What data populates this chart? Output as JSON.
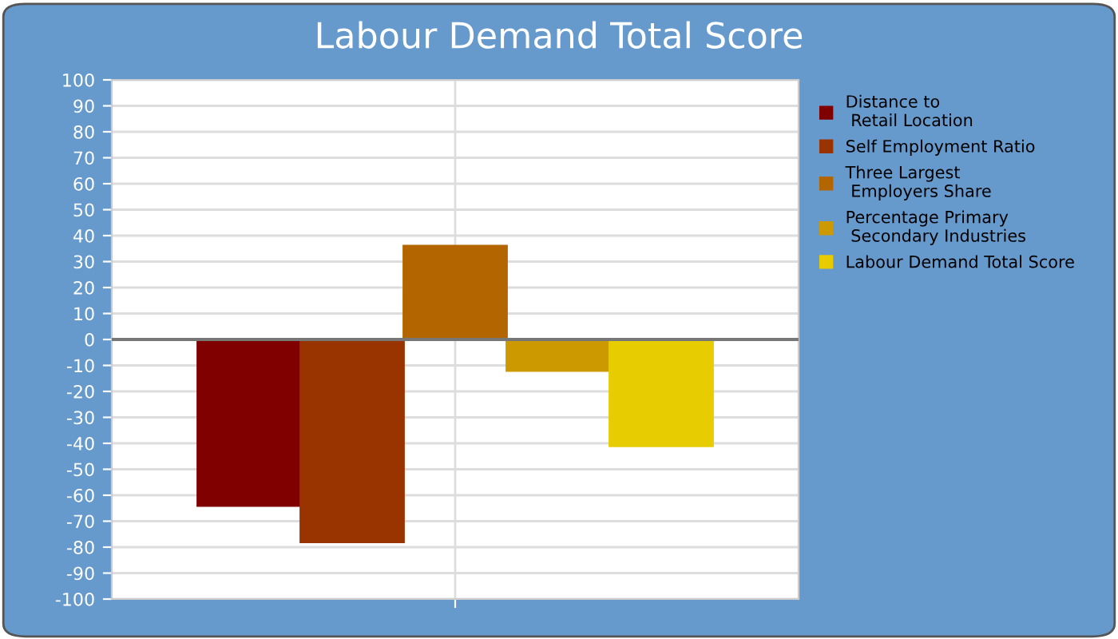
{
  "chart_data": {
    "type": "bar",
    "title": "Labour Demand Total Score",
    "categories": [
      null
    ],
    "series": [
      {
        "name": "Distance to\n Retail Location",
        "color": "#800000",
        "values": [
          -64
        ]
      },
      {
        "name": "Self Employment Ratio",
        "color": "#993300",
        "values": [
          -78
        ]
      },
      {
        "name": "Three Largest\n Employers Share",
        "color": "#b36600",
        "values": [
          36
        ]
      },
      {
        "name": "Percentage Primary\n Secondary Industries",
        "color": "#cc9900",
        "values": [
          -12
        ]
      },
      {
        "name": "Labour Demand Total Score",
        "color": "#e6cc00",
        "values": [
          -41
        ]
      }
    ],
    "ylim": [
      -100,
      100
    ],
    "yticks": [
      -100,
      -90,
      -80,
      -70,
      -60,
      -50,
      -40,
      -30,
      -20,
      -10,
      0,
      10,
      20,
      30,
      40,
      50,
      60,
      70,
      80,
      90,
      100
    ],
    "grid": true,
    "legend": "right"
  }
}
